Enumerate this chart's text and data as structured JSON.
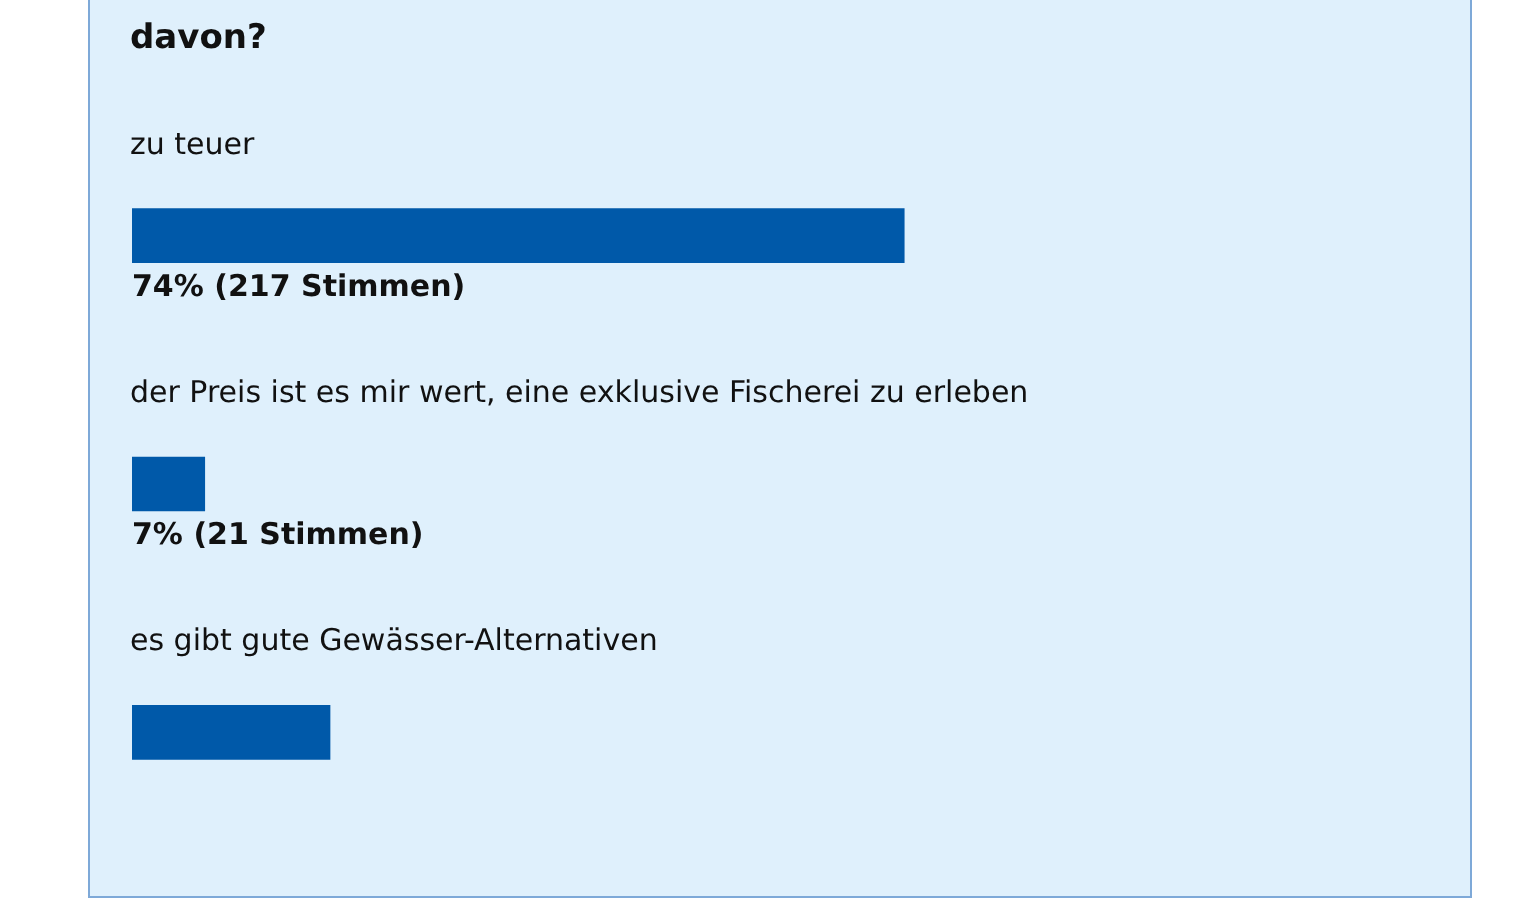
{
  "chart_data": {
    "type": "bar",
    "orientation": "horizontal",
    "title": "davon?",
    "color": "#0059a9",
    "categories": [
      "zu teuer",
      "der Preis ist es mir wert, eine exklusive Fischerei zu erleben",
      "es gibt gute Gewässer-Alternativen"
    ],
    "values": [
      74,
      7,
      19
    ],
    "value_labels": [
      "74% (217 Stimmen)",
      "7% (21 Stimmen)",
      null
    ]
  }
}
